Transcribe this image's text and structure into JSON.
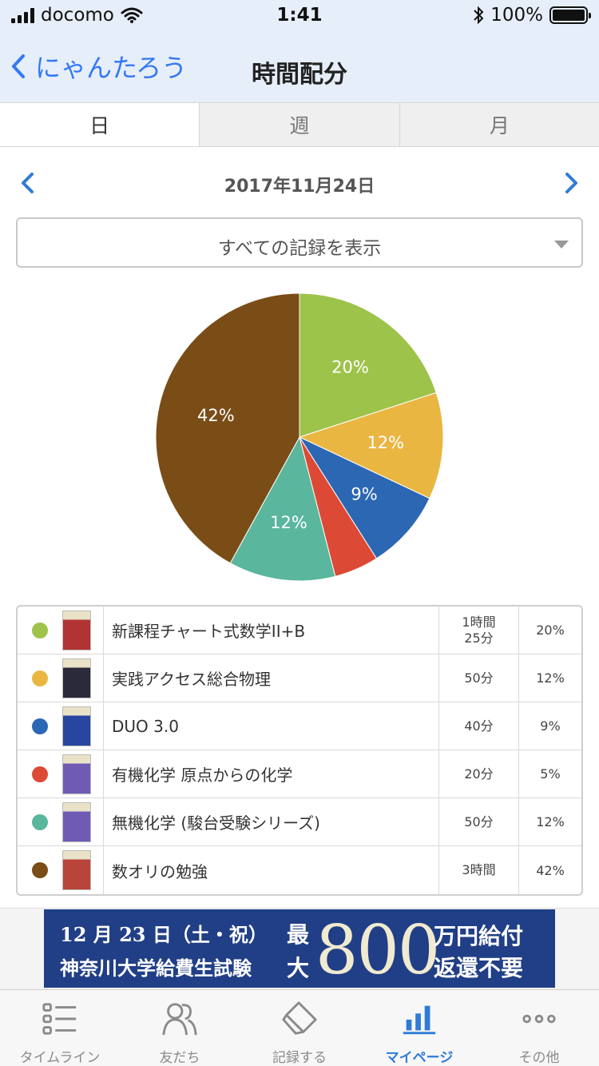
{
  "status_bar": {
    "carrier": "docomo",
    "time": "1:41",
    "battery": "100%",
    "battery_level": 1.0
  },
  "nav": {
    "back_label": "にゃんたろう",
    "title": "時間配分"
  },
  "tabs": [
    {
      "label": "日",
      "active": true
    },
    {
      "label": "週",
      "active": false
    },
    {
      "label": "月",
      "active": false
    }
  ],
  "date": "2017年11月24日",
  "filter": {
    "selected": "すべての記録を表示"
  },
  "chart_data": {
    "type": "pie",
    "title": "",
    "slices": [
      {
        "name": "新課程チャート式数学II+B",
        "value": 20,
        "label": "20%",
        "color": "#9dc34a"
      },
      {
        "name": "実践アクセス総合物理",
        "value": 12,
        "label": "12%",
        "color": "#eab642"
      },
      {
        "name": "DUO 3.0",
        "value": 9,
        "label": "9%",
        "color": "#2c67b4"
      },
      {
        "name": "有機化学 原点からの化学",
        "value": 5,
        "label": "",
        "color": "#dc4a35"
      },
      {
        "name": "無機化学 (駿台受験シリーズ)",
        "value": 12,
        "label": "12%",
        "color": "#5ab69c"
      },
      {
        "name": "数オリの勉強",
        "value": 42,
        "label": "42%",
        "color": "#7a4d17"
      }
    ]
  },
  "records": [
    {
      "color": "#9dc34a",
      "name": "新課程チャート式数学II+B",
      "time": "1時間\n25分",
      "percent": "20%",
      "thumb_color": "#b03434"
    },
    {
      "color": "#eab642",
      "name": "実践アクセス総合物理",
      "time": "50分",
      "percent": "12%",
      "thumb_color": "#2a2a3a"
    },
    {
      "color": "#2c67b4",
      "name": "DUO 3.0",
      "time": "40分",
      "percent": "9%",
      "thumb_color": "#2846a0"
    },
    {
      "color": "#dc4a35",
      "name": "有機化学 原点からの化学",
      "time": "20分",
      "percent": "5%",
      "thumb_color": "#6f5bb4"
    },
    {
      "color": "#5ab69c",
      "name": "無機化学 (駿台受験シリーズ)",
      "time": "50分",
      "percent": "12%",
      "thumb_color": "#6f5bb4"
    },
    {
      "color": "#7a4d17",
      "name": "数オリの勉強",
      "time": "3時間",
      "percent": "42%",
      "thumb_color": "#b9443a"
    }
  ],
  "ad": {
    "line1": "12 月 23 日（土・祝）",
    "line2": "神奈川大学給費生試験",
    "sai": "最",
    "dai": "大",
    "amount": "800",
    "line3": "万円給付",
    "line4": "返還不要"
  },
  "tabbar": [
    {
      "label": "タイムライン",
      "icon": "list-icon",
      "active": false
    },
    {
      "label": "友だち",
      "icon": "friends-icon",
      "active": false
    },
    {
      "label": "記録する",
      "icon": "eraser-icon",
      "active": false
    },
    {
      "label": "マイページ",
      "icon": "bar-chart-icon",
      "active": true
    },
    {
      "label": "その他",
      "icon": "more-icon",
      "active": false
    }
  ],
  "colors": {
    "accent": "#3478f6",
    "tab_active": "#2f7bd8",
    "header_bg": "#e6eef9"
  }
}
